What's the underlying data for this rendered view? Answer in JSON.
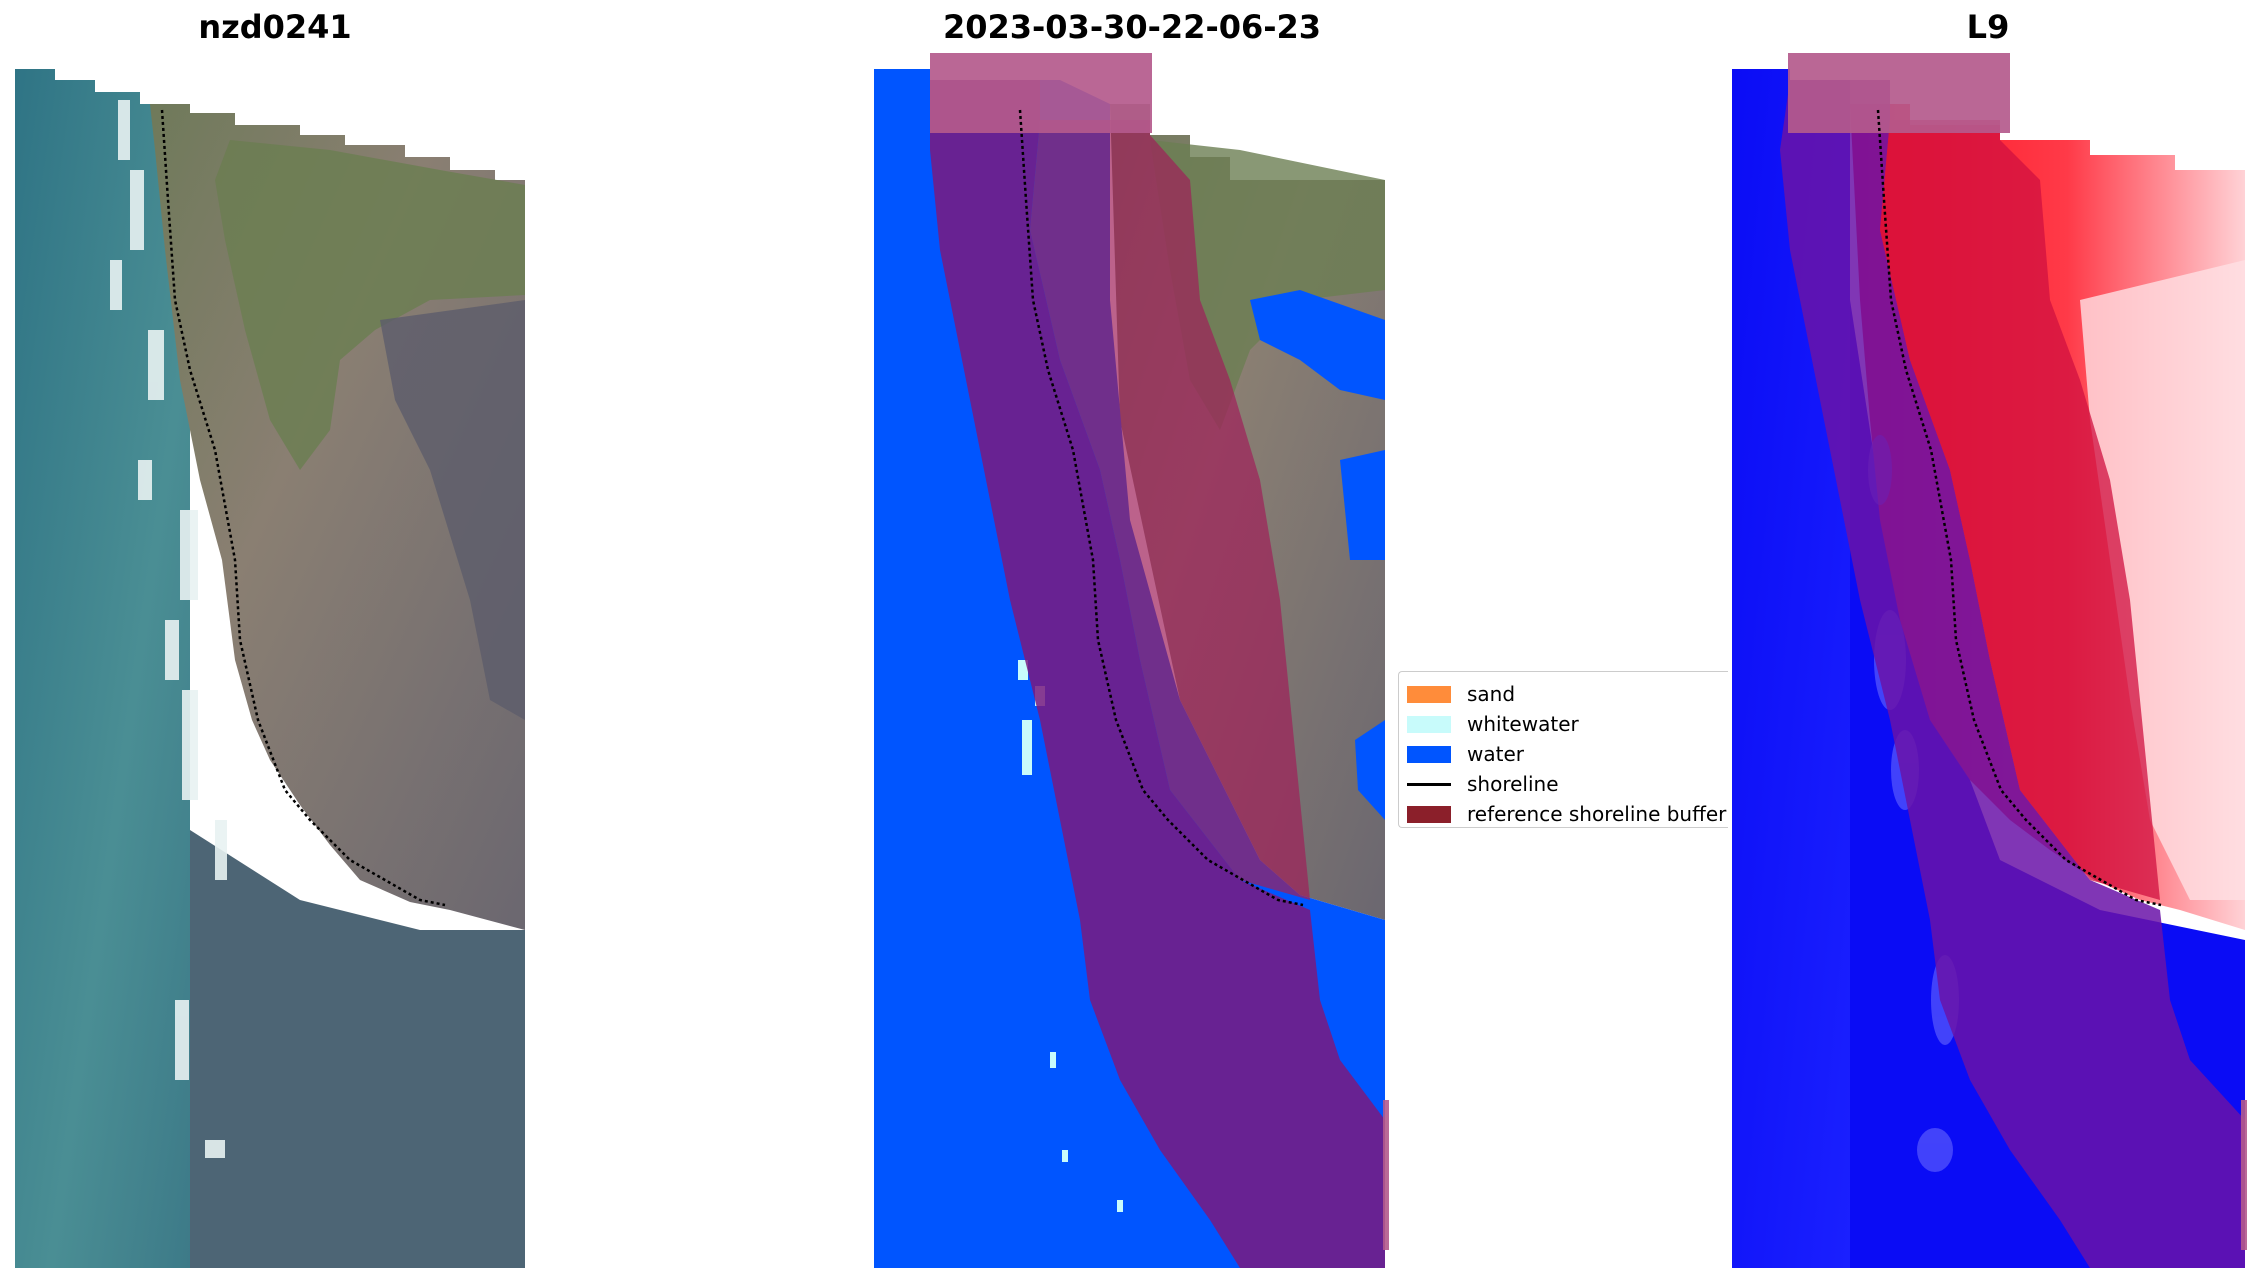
{
  "panels": [
    {
      "title": "nzd0241"
    },
    {
      "title": "2023-03-30-22-06-23"
    },
    {
      "title": "L9"
    }
  ],
  "legend": {
    "items": [
      {
        "label": "sand",
        "color": "#ff8c3a",
        "kind": "patch"
      },
      {
        "label": "whitewater",
        "color": "#c8fbfb",
        "kind": "patch"
      },
      {
        "label": "water",
        "color": "#0055ff",
        "kind": "patch"
      },
      {
        "label": "shoreline",
        "color": "#000000",
        "kind": "line"
      },
      {
        "label": "reference shoreline buffer",
        "color": "#8b1f2a",
        "kind": "patch"
      }
    ]
  },
  "colors": {
    "sea": "#3d8290",
    "land": "#7d766b",
    "vegetation": "#6a7a55",
    "water_class": "#0055ff",
    "buffer_overlay": "#a0205a",
    "index_water": "#0a10ff",
    "index_land": "#ff2030"
  }
}
